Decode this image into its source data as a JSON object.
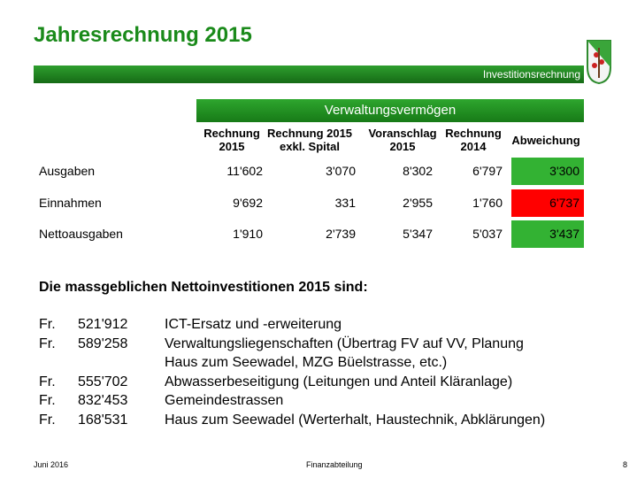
{
  "header": {
    "title": "Jahresrechnung 2015",
    "section": "Investitionsrechnung"
  },
  "table": {
    "title": "Verwaltungsvermögen",
    "columns": [
      [
        "Rechnung",
        "2015"
      ],
      [
        "Rechnung 2015",
        "exkl. Spital"
      ],
      [
        "Voranschlag",
        "2015"
      ],
      [
        "Rechnung",
        "2014"
      ],
      [
        "Abweichung"
      ]
    ],
    "rows": [
      {
        "label": "Ausgaben",
        "values": [
          "11'602",
          "3'070",
          "8'302",
          "6'797",
          "3'300"
        ]
      },
      {
        "label": "Einnahmen",
        "values": [
          "9'692",
          "331",
          "2'955",
          "1'760",
          "6'737"
        ]
      },
      {
        "label": "Nettoausgaben",
        "values": [
          "1'910",
          "2'739",
          "5'347",
          "5'037",
          "3'437"
        ]
      }
    ],
    "highlight_colors": [
      "#33b233",
      "#ff0000",
      "#33b233"
    ]
  },
  "list": {
    "heading": "Die massgeblichen Nettoinvestitionen 2015 sind:",
    "items": [
      {
        "currency": "Fr.",
        "amount": "521'912",
        "text": [
          "ICT-Ersatz und -erweiterung"
        ]
      },
      {
        "currency": "Fr.",
        "amount": "589'258",
        "text": [
          "Verwaltungsliegenschaften (Übertrag FV auf VV, Planung",
          "Haus zum Seewadel, MZG Büelstrasse, etc.)"
        ]
      },
      {
        "currency": "Fr.",
        "amount": "555'702",
        "text": [
          "Abwasserbeseitigung (Leitungen und Anteil Kläranlage)"
        ]
      },
      {
        "currency": "Fr.",
        "amount": "832'453",
        "text": [
          "Gemeindestrassen"
        ]
      },
      {
        "currency": "Fr.",
        "amount": "168'531",
        "text": [
          "Haus zum Seewadel (Werterhalt, Haustechnik, Abklärungen)"
        ]
      }
    ]
  },
  "footer": {
    "date": "Juni 2016",
    "department": "Finanzabteilung",
    "page": "8"
  }
}
